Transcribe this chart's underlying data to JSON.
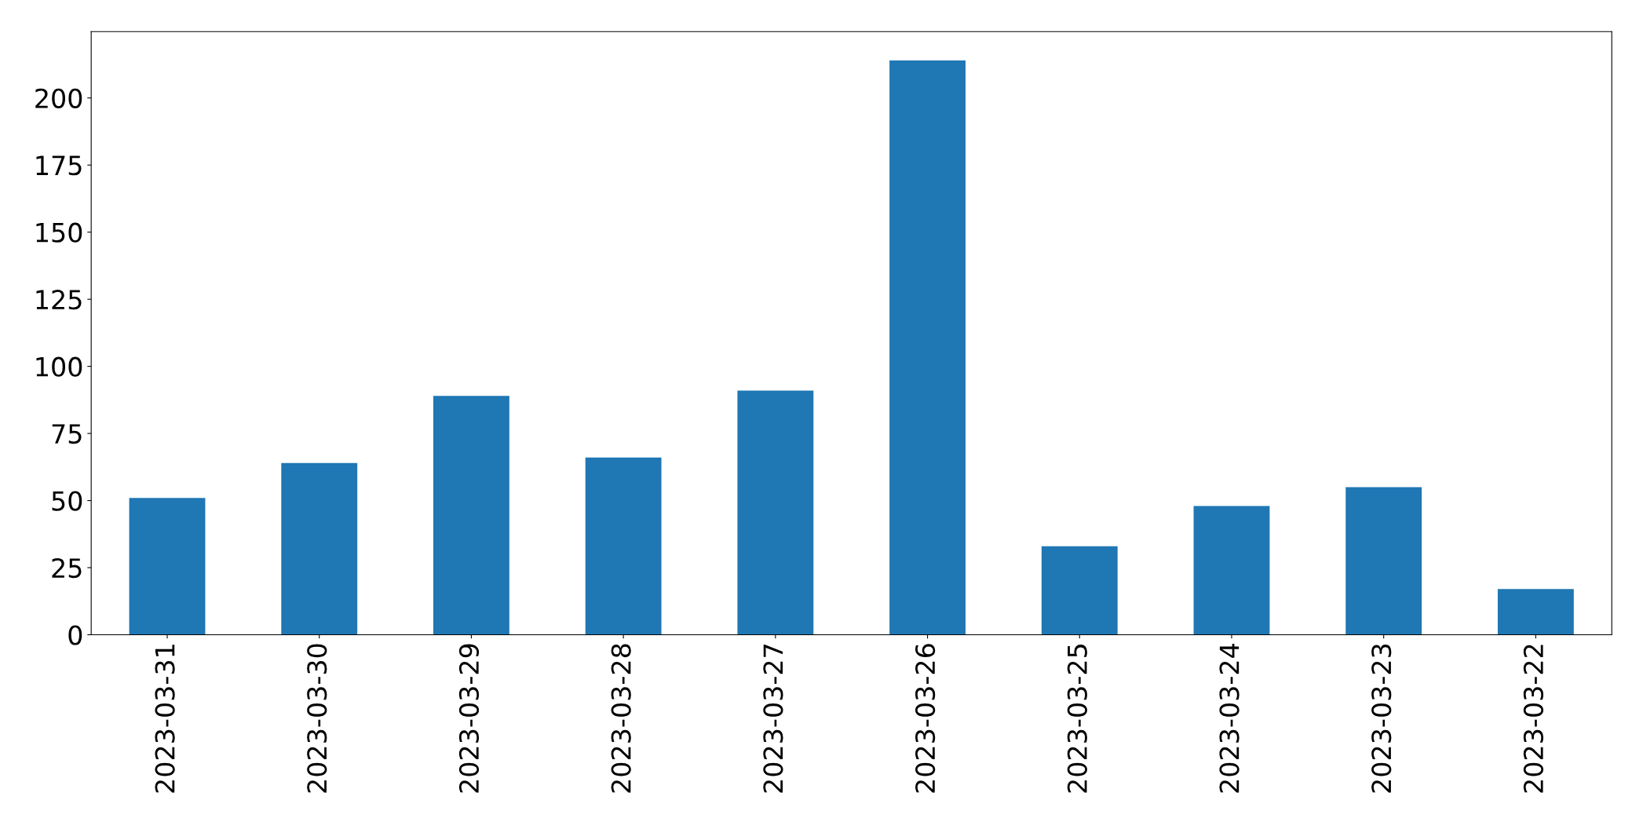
{
  "chart_data": {
    "type": "bar",
    "categories": [
      "2023-03-31",
      "2023-03-30",
      "2023-03-29",
      "2023-03-28",
      "2023-03-27",
      "2023-03-26",
      "2023-03-25",
      "2023-03-24",
      "2023-03-23",
      "2023-03-22"
    ],
    "values": [
      51,
      64,
      89,
      66,
      91,
      214,
      33,
      48,
      55,
      17
    ],
    "color": "#1f77b4",
    "ylim": [
      0,
      224.7
    ],
    "yticks": [
      0,
      25,
      50,
      75,
      100,
      125,
      150,
      175,
      200
    ],
    "grid": false,
    "legend": false
  }
}
